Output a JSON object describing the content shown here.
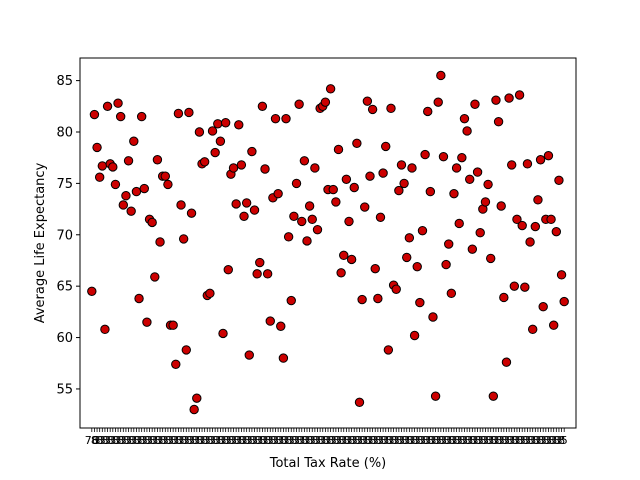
{
  "chart_data": {
    "type": "scatter",
    "title": "",
    "xlabel": "Total Tax Rate (%)",
    "ylabel": "Average Life Expectancy",
    "ylim": [
      51.2,
      87.2
    ],
    "y_ticks": [
      55,
      60,
      65,
      70,
      75,
      80,
      85
    ],
    "grid": false,
    "legend": "none",
    "marker_color": "#cc0000",
    "marker_edge_color": "#000000",
    "x_tick_note": "x tick labels overlap and are illegible except the last visible ones",
    "x_tick_visible_labels": [
      "76",
      "5"
    ],
    "points": [
      [
        0,
        64.5
      ],
      [
        1,
        81.7
      ],
      [
        2,
        78.5
      ],
      [
        3,
        75.6
      ],
      [
        4,
        76.7
      ],
      [
        5,
        60.8
      ],
      [
        6,
        82.5
      ],
      [
        7,
        76.9
      ],
      [
        8,
        76.6
      ],
      [
        9,
        74.9
      ],
      [
        10,
        82.8
      ],
      [
        11,
        81.5
      ],
      [
        12,
        72.9
      ],
      [
        13,
        73.8
      ],
      [
        14,
        77.2
      ],
      [
        15,
        72.3
      ],
      [
        16,
        79.1
      ],
      [
        17,
        74.2
      ],
      [
        18,
        63.8
      ],
      [
        19,
        81.5
      ],
      [
        20,
        74.5
      ],
      [
        21,
        61.5
      ],
      [
        22,
        71.5
      ],
      [
        23,
        71.2
      ],
      [
        24,
        65.9
      ],
      [
        25,
        77.3
      ],
      [
        26,
        69.3
      ],
      [
        27,
        75.7
      ],
      [
        28,
        75.7
      ],
      [
        29,
        74.9
      ],
      [
        30,
        61.2
      ],
      [
        31,
        61.2
      ],
      [
        32,
        57.4
      ],
      [
        33,
        81.8
      ],
      [
        34,
        72.9
      ],
      [
        35,
        69.6
      ],
      [
        36,
        58.8
      ],
      [
        37,
        81.9
      ],
      [
        38,
        72.1
      ],
      [
        39,
        53.0
      ],
      [
        40,
        54.1
      ],
      [
        41,
        80.0
      ],
      [
        42,
        76.9
      ],
      [
        43,
        77.1
      ],
      [
        44,
        64.1
      ],
      [
        45,
        64.3
      ],
      [
        46,
        80.1
      ],
      [
        47,
        78.0
      ],
      [
        48,
        80.8
      ],
      [
        49,
        79.1
      ],
      [
        50,
        60.4
      ],
      [
        51,
        80.9
      ],
      [
        52,
        66.6
      ],
      [
        53,
        75.9
      ],
      [
        54,
        76.5
      ],
      [
        55,
        73.0
      ],
      [
        56,
        80.7
      ],
      [
        57,
        76.8
      ],
      [
        58,
        71.8
      ],
      [
        59,
        73.1
      ],
      [
        60,
        58.3
      ],
      [
        61,
        78.1
      ],
      [
        62,
        72.4
      ],
      [
        63,
        66.2
      ],
      [
        64,
        67.3
      ],
      [
        65,
        82.5
      ],
      [
        66,
        76.4
      ],
      [
        67,
        66.2
      ],
      [
        68,
        61.6
      ],
      [
        69,
        73.6
      ],
      [
        70,
        81.3
      ],
      [
        71,
        74.0
      ],
      [
        72,
        61.1
      ],
      [
        73,
        58.0
      ],
      [
        74,
        81.3
      ],
      [
        75,
        69.8
      ],
      [
        76,
        63.6
      ],
      [
        77,
        71.8
      ],
      [
        78,
        75.0
      ],
      [
        79,
        82.7
      ],
      [
        80,
        71.3
      ],
      [
        81,
        77.2
      ],
      [
        82,
        69.4
      ],
      [
        83,
        72.8
      ],
      [
        84,
        71.5
      ],
      [
        85,
        76.5
      ],
      [
        86,
        70.5
      ],
      [
        87,
        82.3
      ],
      [
        88,
        82.5
      ],
      [
        89,
        82.9
      ],
      [
        90,
        74.4
      ],
      [
        91,
        84.2
      ],
      [
        92,
        74.4
      ],
      [
        93,
        73.2
      ],
      [
        94,
        78.3
      ],
      [
        95,
        66.3
      ],
      [
        96,
        68.0
      ],
      [
        97,
        75.4
      ],
      [
        98,
        71.3
      ],
      [
        99,
        67.6
      ],
      [
        100,
        74.6
      ],
      [
        101,
        78.9
      ],
      [
        102,
        53.7
      ],
      [
        103,
        63.7
      ],
      [
        104,
        72.7
      ],
      [
        105,
        83.0
      ],
      [
        106,
        75.7
      ],
      [
        107,
        82.2
      ],
      [
        108,
        66.7
      ],
      [
        109,
        63.8
      ],
      [
        110,
        71.7
      ],
      [
        111,
        76.0
      ],
      [
        112,
        78.6
      ],
      [
        113,
        58.8
      ],
      [
        114,
        82.3
      ],
      [
        115,
        65.1
      ],
      [
        116,
        64.7
      ],
      [
        117,
        74.3
      ],
      [
        118,
        76.8
      ],
      [
        119,
        75.0
      ],
      [
        120,
        67.8
      ],
      [
        121,
        69.7
      ],
      [
        122,
        76.5
      ],
      [
        123,
        60.2
      ],
      [
        124,
        66.9
      ],
      [
        125,
        63.4
      ],
      [
        126,
        70.4
      ],
      [
        127,
        77.8
      ],
      [
        128,
        82.0
      ],
      [
        129,
        74.2
      ],
      [
        130,
        62.0
      ],
      [
        131,
        54.3
      ],
      [
        132,
        82.9
      ],
      [
        133,
        85.5
      ],
      [
        134,
        77.6
      ],
      [
        135,
        67.1
      ],
      [
        136,
        69.1
      ],
      [
        137,
        64.3
      ],
      [
        138,
        74.0
      ],
      [
        139,
        76.5
      ],
      [
        140,
        71.1
      ],
      [
        141,
        77.5
      ],
      [
        142,
        81.3
      ],
      [
        143,
        80.1
      ],
      [
        144,
        75.4
      ],
      [
        145,
        68.6
      ],
      [
        146,
        82.7
      ],
      [
        147,
        76.1
      ],
      [
        148,
        70.2
      ],
      [
        149,
        72.5
      ],
      [
        150,
        73.2
      ],
      [
        151,
        74.9
      ],
      [
        152,
        67.7
      ],
      [
        153,
        54.3
      ],
      [
        154,
        83.1
      ],
      [
        155,
        81.0
      ],
      [
        156,
        72.8
      ],
      [
        157,
        63.9
      ],
      [
        158,
        57.6
      ],
      [
        159,
        83.3
      ],
      [
        160,
        76.8
      ],
      [
        161,
        65.0
      ],
      [
        162,
        71.5
      ],
      [
        163,
        83.6
      ],
      [
        164,
        70.9
      ],
      [
        165,
        64.9
      ],
      [
        166,
        76.9
      ],
      [
        167,
        69.3
      ],
      [
        168,
        60.8
      ],
      [
        169,
        70.8
      ],
      [
        170,
        73.4
      ],
      [
        171,
        77.3
      ],
      [
        172,
        63.0
      ],
      [
        173,
        71.5
      ],
      [
        174,
        77.7
      ],
      [
        175,
        71.5
      ],
      [
        176,
        61.2
      ],
      [
        177,
        70.3
      ],
      [
        178,
        75.3
      ],
      [
        179,
        66.1
      ],
      [
        180,
        63.5
      ]
    ]
  }
}
